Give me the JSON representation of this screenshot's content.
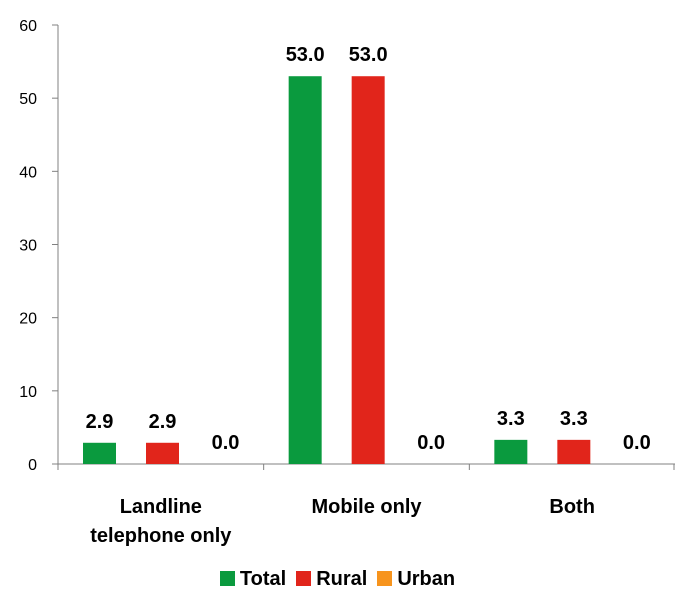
{
  "chart_data": {
    "type": "bar",
    "categories": [
      [
        "Landline",
        "telephone only"
      ],
      [
        "Mobile only"
      ],
      [
        "Both"
      ]
    ],
    "series": [
      {
        "name": "Total",
        "color": "#0a9a3e",
        "values": [
          2.9,
          53.0,
          3.3
        ],
        "labels": [
          "2.9",
          "53.0",
          "3.3"
        ]
      },
      {
        "name": "Rural",
        "color": "#e1251b",
        "values": [
          2.9,
          53.0,
          3.3
        ],
        "labels": [
          "2.9",
          "53.0",
          "3.3"
        ]
      },
      {
        "name": "Urban",
        "color": "#f7941d",
        "values": [
          0.0,
          0.0,
          0.0
        ],
        "labels": [
          "0.0",
          "0.0",
          "0.0"
        ]
      }
    ],
    "ylim": [
      0,
      60
    ],
    "yticks": [
      0,
      10,
      20,
      30,
      40,
      50,
      60
    ],
    "grid": false,
    "legend_position": "bottom"
  }
}
